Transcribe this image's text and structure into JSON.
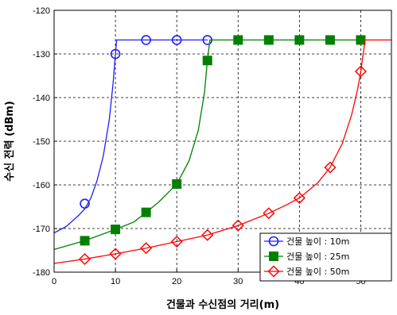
{
  "chart_data": {
    "type": "line",
    "xlabel": "건물과 수신점의 거리(m)",
    "ylabel": "수신 전력 (dBm)",
    "xlim": [
      0,
      55
    ],
    "ylim": [
      -180,
      -120
    ],
    "x_ticks": [
      0,
      10,
      20,
      30,
      40,
      50
    ],
    "y_ticks": [
      -180,
      -170,
      -160,
      -150,
      -140,
      -130,
      -120
    ],
    "x_tick_labels": [
      "0",
      "10",
      "20",
      "30",
      "40",
      "50"
    ],
    "y_tick_labels": [
      "-180",
      "-170",
      "-160",
      "-150",
      "-140",
      "-130",
      "-120"
    ],
    "grid": true,
    "grid_style": "dashed",
    "legend_position": "bottom-right",
    "series": [
      {
        "name": "건물 높이 : 10m",
        "color": "#1f1fff",
        "marker": "circle-open",
        "curve": [
          [
            0,
            -171.0
          ],
          [
            2,
            -169.5
          ],
          [
            4,
            -167.0
          ],
          [
            5,
            -165.5
          ],
          [
            6,
            -163.0
          ],
          [
            7,
            -159.0
          ],
          [
            8,
            -153.5
          ],
          [
            9,
            -145.0
          ],
          [
            9.6,
            -137.0
          ],
          [
            10,
            -130.0
          ],
          [
            10.2,
            -126.8
          ],
          [
            25,
            -126.8
          ]
        ],
        "points": [
          [
            5,
            -164.3
          ],
          [
            10,
            -130.0
          ],
          [
            15,
            -126.8
          ],
          [
            20,
            -126.8
          ],
          [
            25,
            -126.8
          ]
        ]
      },
      {
        "name": "건물 높이 : 25m",
        "color": "#008000",
        "marker": "square-filled",
        "curve": [
          [
            0,
            -174.8
          ],
          [
            5,
            -172.8
          ],
          [
            10,
            -170.2
          ],
          [
            13,
            -168.5
          ],
          [
            15,
            -166.3
          ],
          [
            17,
            -164.0
          ],
          [
            20,
            -159.8
          ],
          [
            22,
            -154.5
          ],
          [
            23.5,
            -147.5
          ],
          [
            24.5,
            -139.0
          ],
          [
            25,
            -131.5
          ],
          [
            25.4,
            -126.8
          ],
          [
            50,
            -126.8
          ]
        ],
        "points": [
          [
            5,
            -172.8
          ],
          [
            10,
            -170.2
          ],
          [
            15,
            -166.3
          ],
          [
            20,
            -159.8
          ],
          [
            25,
            -131.5
          ],
          [
            30,
            -126.8
          ],
          [
            35,
            -126.8
          ],
          [
            40,
            -126.8
          ],
          [
            45,
            -126.8
          ],
          [
            50,
            -126.8
          ]
        ]
      },
      {
        "name": "건물 높이 : 50m",
        "color": "#ff0000",
        "marker": "diamond-open",
        "curve": [
          [
            0,
            -178.0
          ],
          [
            5,
            -177.0
          ],
          [
            10,
            -175.8
          ],
          [
            15,
            -174.5
          ],
          [
            20,
            -173.0
          ],
          [
            25,
            -171.5
          ],
          [
            30,
            -169.3
          ],
          [
            35,
            -166.5
          ],
          [
            38,
            -164.5
          ],
          [
            40,
            -163.0
          ],
          [
            43,
            -159.5
          ],
          [
            45,
            -156.0
          ],
          [
            47,
            -150.5
          ],
          [
            48.5,
            -144.0
          ],
          [
            49.5,
            -138.0
          ],
          [
            50,
            -134.0
          ],
          [
            50.7,
            -126.8
          ],
          [
            55,
            -126.8
          ]
        ],
        "points": [
          [
            5,
            -177.0
          ],
          [
            10,
            -175.8
          ],
          [
            15,
            -174.5
          ],
          [
            20,
            -173.0
          ],
          [
            25,
            -171.5
          ],
          [
            30,
            -169.3
          ],
          [
            35,
            -166.5
          ],
          [
            40,
            -163.0
          ],
          [
            45,
            -156.0
          ],
          [
            50,
            -134.0
          ]
        ]
      }
    ]
  }
}
